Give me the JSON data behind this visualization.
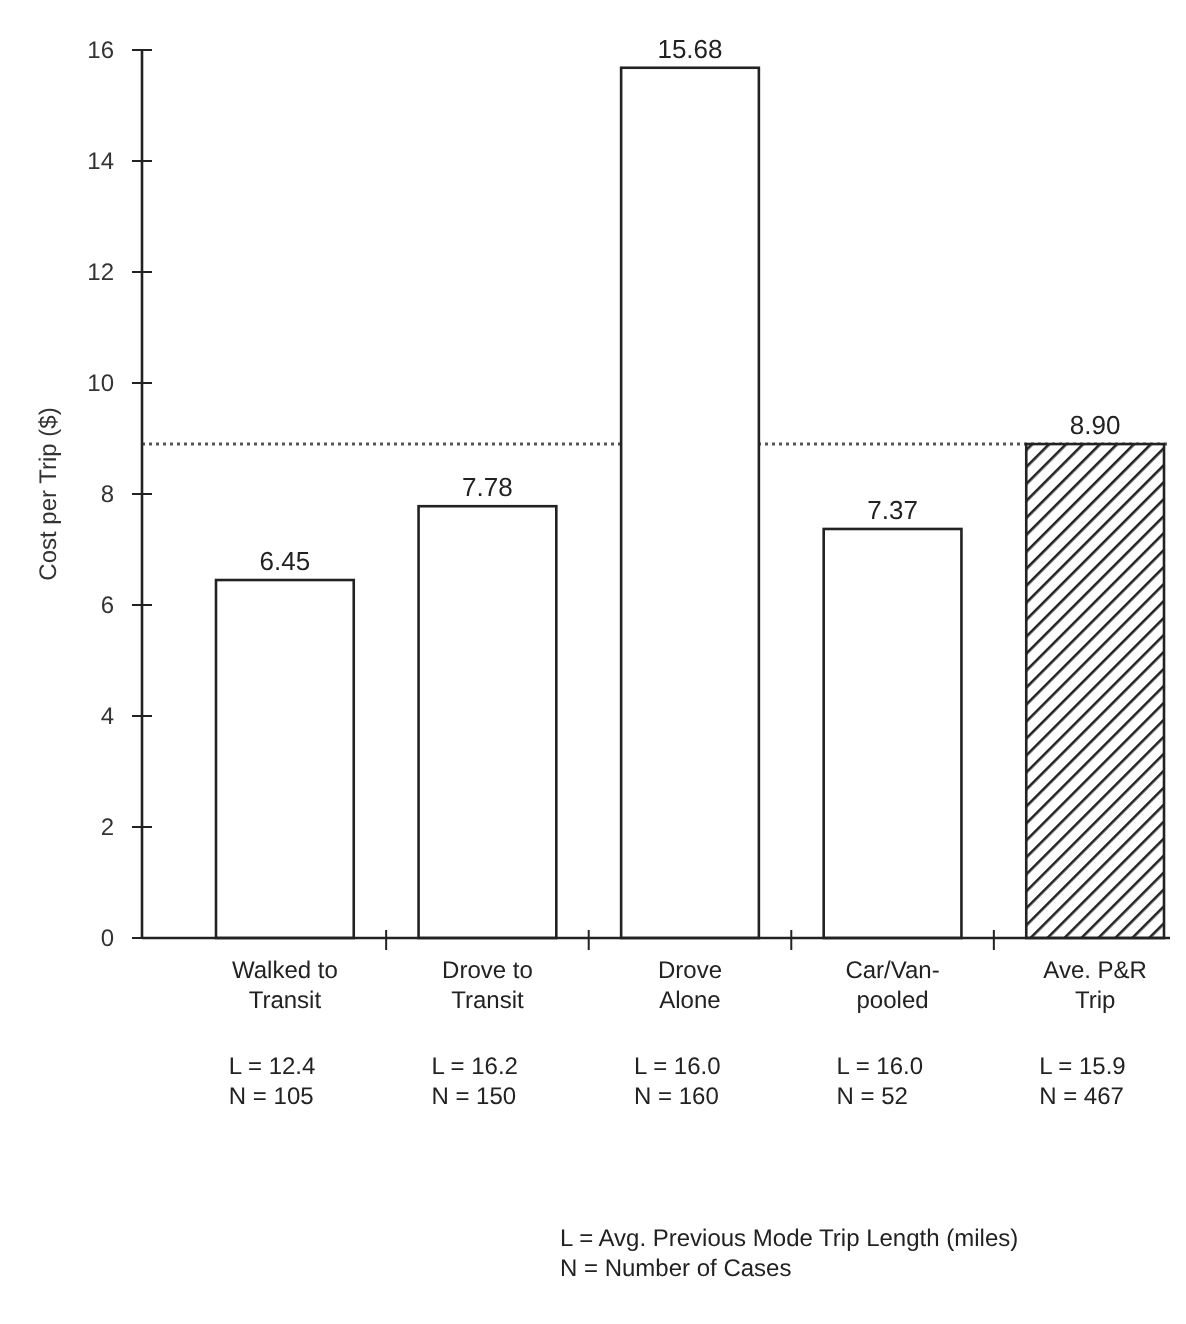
{
  "chart_data": {
    "type": "bar",
    "ylabel": "Cost per Trip ($)",
    "categories": [
      "Walked to\nTransit",
      "Drove to\nTransit",
      "Drove\nAlone",
      "Car/Van-\npooled",
      "Ave. P&R\nTrip"
    ],
    "values": [
      6.45,
      7.78,
      15.68,
      7.37,
      8.9
    ],
    "value_labels": [
      "6.45",
      "7.78",
      "15.68",
      "7.37",
      "8.90"
    ],
    "colors": [
      "#ffffff",
      "#ffffff",
      "#ffffff",
      "#ffffff",
      "#222222"
    ],
    "ylim": [
      0,
      16
    ],
    "yticks": [
      0,
      2,
      4,
      6,
      8,
      10,
      12,
      14,
      16
    ],
    "grid": false,
    "ref_lines": [
      {
        "axis": "y",
        "value": 8.9,
        "color": "#555555",
        "line_style": "dotted"
      }
    ],
    "annotations": [
      "L = 12.4\nN = 105",
      "L = 16.2\nN = 150",
      "L = 16.0\nN = 160",
      "L = 16.0\nN = 52",
      "L = 15.9\nN = 467",
      "L = Avg. Previous Mode Trip Length (miles)\nN = Number of Cases"
    ]
  }
}
